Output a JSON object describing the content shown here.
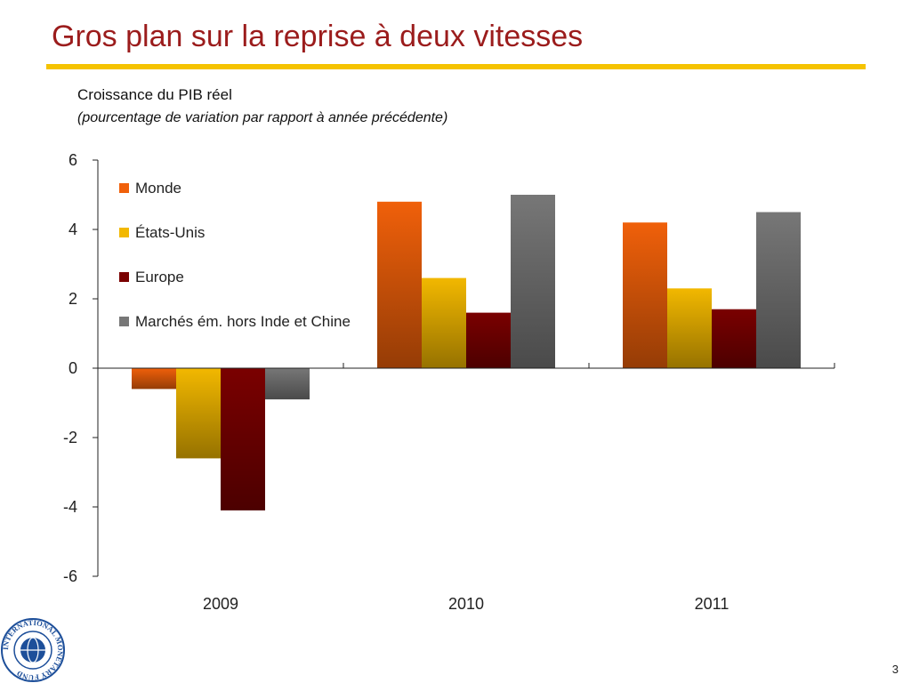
{
  "slide": {
    "title": "Gros plan sur la reprise à deux vitesses",
    "page_number": "3",
    "logo_text": "INTERNATIONAL MONETARY FUND",
    "accent_color": "#f5c300",
    "title_color": "#9b1c1c"
  },
  "chart_data": {
    "type": "bar",
    "title": "Croissance du PIB réel",
    "subtitle": "(pourcentage de variation par rapport à année précédente)",
    "categories": [
      "2009",
      "2010",
      "2011"
    ],
    "series": [
      {
        "name": "Monde",
        "values": [
          -0.6,
          4.8,
          4.2
        ],
        "color": "#f0600a"
      },
      {
        "name": "États-Unis",
        "values": [
          -2.6,
          2.6,
          2.3
        ],
        "color": "#f2b800"
      },
      {
        "name": "Europe",
        "values": [
          -4.1,
          1.6,
          1.7
        ],
        "color": "#7a0000"
      },
      {
        "name": "Marchés ém. hors Inde et Chine",
        "values": [
          -0.9,
          5.0,
          4.5
        ],
        "color": "#777777"
      }
    ],
    "ylim": [
      -6,
      6
    ],
    "yticks": [
      6,
      4,
      2,
      0,
      -2,
      -4,
      -6
    ],
    "grid": false,
    "legend": "top-left"
  }
}
